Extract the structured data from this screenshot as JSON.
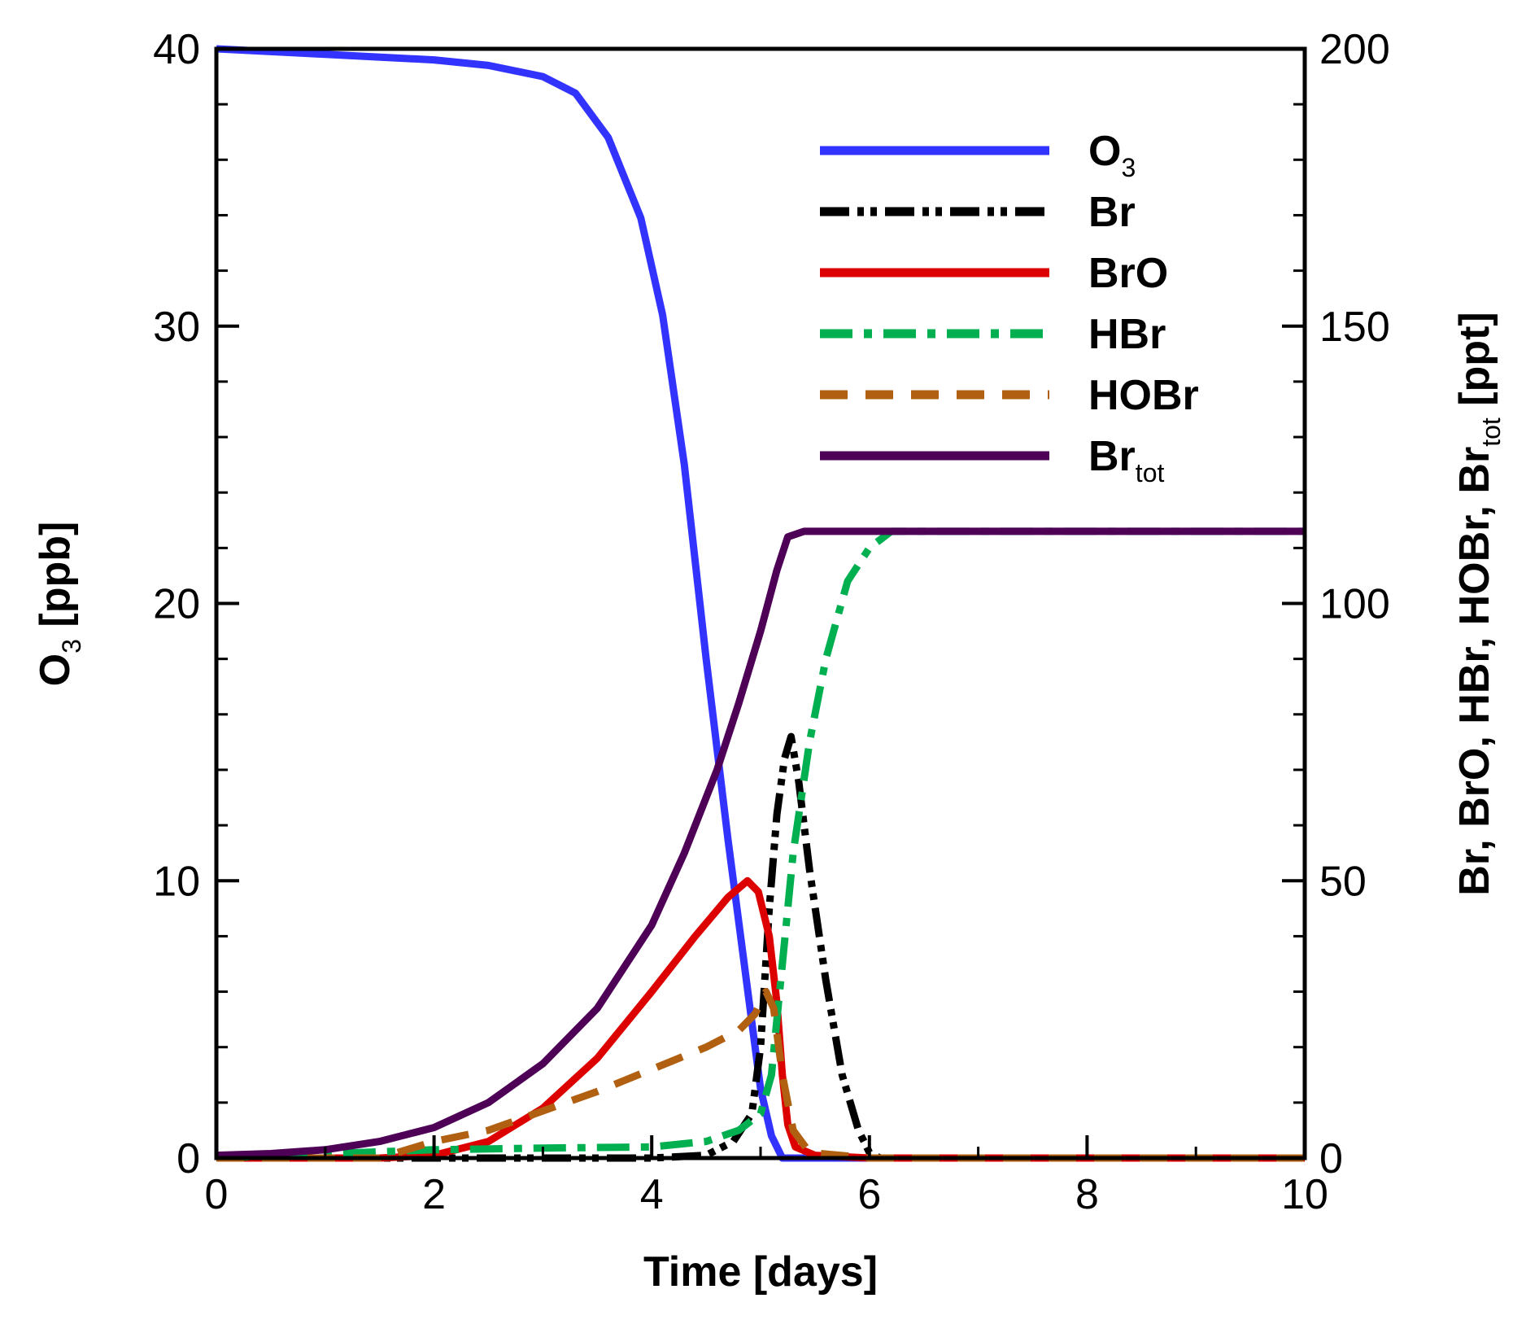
{
  "chart_data": {
    "type": "line",
    "x_axis": {
      "label": "Time [days]",
      "range": [
        0,
        10
      ],
      "ticks": [
        0,
        2,
        4,
        6,
        8,
        10
      ]
    },
    "y_left": {
      "label_main": "O",
      "label_sub": "3",
      "label_tail": " [ppb]",
      "range": [
        0,
        40
      ],
      "ticks": [
        0,
        10,
        20,
        30,
        40
      ]
    },
    "y_right": {
      "label_main": "Br, BrO, HBr, HOBr, Br",
      "label_sub": "tot",
      "label_tail": " [ppt]",
      "range": [
        0,
        200
      ],
      "ticks": [
        0,
        50,
        100,
        150,
        200
      ]
    },
    "legend_position": "top-right",
    "series": [
      {
        "key": "o3",
        "name": "O",
        "name_sub": "3",
        "axis": "left",
        "color": "#3333ff",
        "style": "solid",
        "points": [
          [
            0,
            40
          ],
          [
            1,
            39.8
          ],
          [
            2,
            39.6
          ],
          [
            2.5,
            39.4
          ],
          [
            3,
            39.0
          ],
          [
            3.3,
            38.4
          ],
          [
            3.6,
            36.8
          ],
          [
            3.9,
            33.9
          ],
          [
            4.1,
            30.4
          ],
          [
            4.3,
            25.0
          ],
          [
            4.5,
            18.0
          ],
          [
            4.7,
            11.5
          ],
          [
            4.9,
            5.5
          ],
          [
            5.0,
            2.5
          ],
          [
            5.1,
            0.8
          ],
          [
            5.2,
            0
          ],
          [
            10,
            0
          ]
        ]
      },
      {
        "key": "br",
        "name": "Br",
        "name_sub": "",
        "axis": "right",
        "color": "#000000",
        "style": "dashdotdot",
        "points": [
          [
            0,
            0
          ],
          [
            4.0,
            0
          ],
          [
            4.5,
            0.5
          ],
          [
            4.75,
            3
          ],
          [
            4.92,
            8
          ],
          [
            5.0,
            20
          ],
          [
            5.08,
            45
          ],
          [
            5.15,
            62
          ],
          [
            5.22,
            72
          ],
          [
            5.28,
            76
          ],
          [
            5.35,
            68
          ],
          [
            5.45,
            52
          ],
          [
            5.6,
            32
          ],
          [
            5.75,
            15
          ],
          [
            5.9,
            5
          ],
          [
            6.0,
            1
          ],
          [
            6.1,
            0
          ],
          [
            10,
            0
          ]
        ]
      },
      {
        "key": "bro",
        "name": "BrO",
        "name_sub": "",
        "axis": "right",
        "color": "#dd0000",
        "style": "solid",
        "points": [
          [
            0,
            0
          ],
          [
            1.5,
            0
          ],
          [
            2.0,
            0.5
          ],
          [
            2.5,
            3
          ],
          [
            3.0,
            9
          ],
          [
            3.5,
            18
          ],
          [
            4.0,
            30
          ],
          [
            4.4,
            40
          ],
          [
            4.7,
            47
          ],
          [
            4.88,
            50
          ],
          [
            4.98,
            48
          ],
          [
            5.08,
            40
          ],
          [
            5.15,
            28
          ],
          [
            5.2,
            15
          ],
          [
            5.25,
            6
          ],
          [
            5.32,
            2
          ],
          [
            5.5,
            0.5
          ],
          [
            6,
            0
          ],
          [
            10,
            0
          ]
        ]
      },
      {
        "key": "hbr",
        "name": "HBr",
        "name_sub": "",
        "axis": "right",
        "color": "#00b050",
        "style": "dashdot",
        "points": [
          [
            0,
            0
          ],
          [
            2.0,
            1.5
          ],
          [
            3.0,
            1.8
          ],
          [
            4.0,
            2
          ],
          [
            4.5,
            3
          ],
          [
            4.8,
            5
          ],
          [
            5.0,
            8
          ],
          [
            5.1,
            15
          ],
          [
            5.2,
            35
          ],
          [
            5.3,
            55
          ],
          [
            5.45,
            75
          ],
          [
            5.6,
            90
          ],
          [
            5.8,
            104
          ],
          [
            6.0,
            110
          ],
          [
            6.2,
            113
          ],
          [
            10,
            113
          ]
        ]
      },
      {
        "key": "hobr",
        "name": "HOBr",
        "name_sub": "",
        "axis": "right",
        "color": "#b06010",
        "style": "dashed",
        "points": [
          [
            0,
            0
          ],
          [
            1.5,
            0
          ],
          [
            2.0,
            3
          ],
          [
            2.5,
            5
          ],
          [
            3.0,
            8.5
          ],
          [
            3.5,
            12
          ],
          [
            4.0,
            16
          ],
          [
            4.5,
            20
          ],
          [
            4.8,
            23
          ],
          [
            4.95,
            26
          ],
          [
            5.05,
            30
          ],
          [
            5.12,
            27
          ],
          [
            5.2,
            15
          ],
          [
            5.3,
            5
          ],
          [
            5.45,
            1
          ],
          [
            6,
            0
          ],
          [
            10,
            0
          ]
        ]
      },
      {
        "key": "brtot",
        "name": "Br",
        "name_sub": "tot",
        "axis": "right",
        "color": "#4d0055",
        "style": "solid",
        "points": [
          [
            0,
            0.5
          ],
          [
            0.5,
            0.8
          ],
          [
            1.0,
            1.5
          ],
          [
            1.5,
            3
          ],
          [
            2.0,
            5.5
          ],
          [
            2.5,
            10
          ],
          [
            3.0,
            17
          ],
          [
            3.5,
            27
          ],
          [
            4.0,
            42
          ],
          [
            4.3,
            55
          ],
          [
            4.6,
            70
          ],
          [
            4.8,
            82
          ],
          [
            5.0,
            95
          ],
          [
            5.15,
            106
          ],
          [
            5.25,
            112
          ],
          [
            5.4,
            113
          ],
          [
            10,
            113
          ]
        ]
      }
    ]
  }
}
